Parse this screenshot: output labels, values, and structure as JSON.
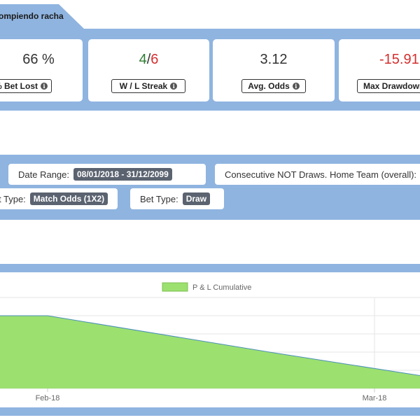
{
  "tab": {
    "label": "ompiendo racha"
  },
  "stats": [
    {
      "value": "66 %",
      "label": "% Bet Lost"
    },
    {
      "win": "4",
      "sep": "/",
      "loss": "6",
      "label": "W / L Streak"
    },
    {
      "value": "3.12",
      "label": "Avg. Odds"
    },
    {
      "value": "-15.91",
      "label": "Max Drawdown"
    }
  ],
  "filters": {
    "date_range": {
      "label": "Date Range:",
      "value": "08/01/2018 - 31/12/2099"
    },
    "strategy": {
      "label": "Consecutive NOT Draws. Home Team (overall):"
    },
    "market_type": {
      "label": "t Type:",
      "value": "Match Odds (1X2)"
    },
    "bet_type": {
      "label": "Bet Type:",
      "value": "Draw"
    }
  },
  "colors": {
    "band": "#8fb4e0",
    "fill": "#9ce070",
    "line": "#4a90b8",
    "loss": "#d32f2f",
    "win": "#2e7d32"
  },
  "chart_data": {
    "type": "area",
    "legend": [
      "P & L Cumulative"
    ],
    "legend_position": "top-center",
    "grid": true,
    "x_ticks": [
      "Feb-18",
      "Mar-18"
    ],
    "series": [
      {
        "name": "P & L Cumulative",
        "points": [
          {
            "x": "2018-01-08",
            "y": 4.0
          },
          {
            "x": "2018-02-01",
            "y": 4.0
          },
          {
            "x": "2018-02-20",
            "y": 2.0
          },
          {
            "x": "2018-03-05",
            "y": 0.7
          },
          {
            "x": "2018-03-10",
            "y": 1.0
          }
        ]
      }
    ],
    "ylim": [
      0,
      5
    ]
  }
}
